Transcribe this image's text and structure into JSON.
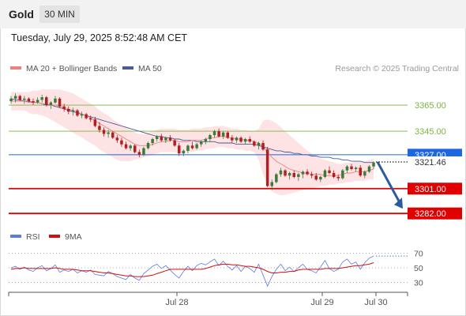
{
  "header": {
    "instrument": "Gold",
    "timeframe": "30 MIN",
    "datetime": "Tuesday, July 29, 2025 8:52:48 AM CET"
  },
  "legend": {
    "ma20_bb": "MA 20 + Bollinger Bands",
    "ma50": "MA 50",
    "credit": "Research © 2025 Trading Central",
    "rsi": "RSI",
    "rsi_ma": "9MA"
  },
  "colors": {
    "ma20": "#f08080",
    "ma50": "#4a5a9a",
    "bollinger_fill": "#fde0e0",
    "up_candle": "#3c7a3c",
    "down_candle": "#b02020",
    "resistance_green": "#7cb342",
    "pivot_blue": "#1e66e0",
    "support_red": "#e00000",
    "rsi_line": "#5b7be0",
    "rsi_ma_line": "#d01010",
    "arrow": "#2d5a9e"
  },
  "chart_data": [
    {
      "type": "candlestick",
      "panel": "price",
      "ylim": [
        3270,
        3385
      ],
      "x_ticks": [
        "Jul 28",
        "Jul 29",
        "Jul 30"
      ],
      "levels": [
        {
          "value": 3365.0,
          "label": "3365.00",
          "role": "resistance"
        },
        {
          "value": 3345.0,
          "label": "3345.00",
          "role": "resistance"
        },
        {
          "value": 3327.0,
          "label": "3327.00",
          "role": "pivot"
        },
        {
          "value": 3301.0,
          "label": "3301.00",
          "role": "support"
        },
        {
          "value": 3282.0,
          "label": "3282.00",
          "role": "support"
        }
      ],
      "last_price": {
        "value": 3321.46,
        "label": "3321.46"
      },
      "candles": [
        [
          3368,
          3372,
          3366,
          3370
        ],
        [
          3370,
          3374,
          3367,
          3372
        ],
        [
          3372,
          3373,
          3368,
          3369
        ],
        [
          3369,
          3372,
          3366,
          3370
        ],
        [
          3370,
          3371,
          3367,
          3368
        ],
        [
          3368,
          3370,
          3365,
          3367
        ],
        [
          3367,
          3371,
          3366,
          3369
        ],
        [
          3369,
          3373,
          3367,
          3371
        ],
        [
          3371,
          3372,
          3364,
          3365
        ],
        [
          3365,
          3368,
          3362,
          3367
        ],
        [
          3367,
          3372,
          3366,
          3370
        ],
        [
          3370,
          3371,
          3363,
          3364
        ],
        [
          3364,
          3366,
          3360,
          3362
        ],
        [
          3362,
          3364,
          3358,
          3360
        ],
        [
          3360,
          3363,
          3357,
          3361
        ],
        [
          3361,
          3362,
          3356,
          3357
        ],
        [
          3357,
          3360,
          3355,
          3358
        ],
        [
          3358,
          3359,
          3354,
          3355
        ],
        [
          3355,
          3357,
          3352,
          3354
        ],
        [
          3354,
          3356,
          3348,
          3349
        ],
        [
          3349,
          3352,
          3344,
          3346
        ],
        [
          3346,
          3348,
          3341,
          3343
        ],
        [
          3343,
          3346,
          3340,
          3344
        ],
        [
          3344,
          3345,
          3339,
          3340
        ],
        [
          3340,
          3342,
          3336,
          3338
        ],
        [
          3338,
          3340,
          3333,
          3335
        ],
        [
          3335,
          3337,
          3331,
          3332
        ],
        [
          3332,
          3335,
          3330,
          3334
        ],
        [
          3334,
          3335,
          3328,
          3329
        ],
        [
          3329,
          3331,
          3325,
          3327
        ],
        [
          3327,
          3333,
          3326,
          3332
        ],
        [
          3332,
          3337,
          3331,
          3336
        ],
        [
          3336,
          3340,
          3334,
          3339
        ],
        [
          3339,
          3342,
          3337,
          3341
        ],
        [
          3341,
          3343,
          3337,
          3338
        ],
        [
          3338,
          3341,
          3336,
          3340
        ],
        [
          3340,
          3342,
          3337,
          3338
        ],
        [
          3338,
          3339,
          3333,
          3334
        ],
        [
          3334,
          3336,
          3326,
          3328
        ],
        [
          3328,
          3331,
          3326,
          3330
        ],
        [
          3330,
          3335,
          3328,
          3334
        ],
        [
          3334,
          3337,
          3331,
          3332
        ],
        [
          3332,
          3336,
          3331,
          3335
        ],
        [
          3335,
          3338,
          3333,
          3337
        ],
        [
          3337,
          3340,
          3335,
          3339
        ],
        [
          3339,
          3343,
          3337,
          3342
        ],
        [
          3342,
          3346,
          3340,
          3345
        ],
        [
          3345,
          3347,
          3340,
          3341
        ],
        [
          3341,
          3345,
          3339,
          3344
        ],
        [
          3344,
          3345,
          3339,
          3340
        ],
        [
          3340,
          3342,
          3336,
          3338
        ],
        [
          3338,
          3341,
          3336,
          3340
        ],
        [
          3340,
          3341,
          3336,
          3337
        ],
        [
          3337,
          3340,
          3335,
          3339
        ],
        [
          3339,
          3341,
          3336,
          3337
        ],
        [
          3337,
          3338,
          3333,
          3334
        ],
        [
          3334,
          3337,
          3331,
          3336
        ],
        [
          3336,
          3338,
          3330,
          3331
        ],
        [
          3331,
          3333,
          3302,
          3303
        ],
        [
          3303,
          3308,
          3300,
          3306
        ],
        [
          3306,
          3313,
          3305,
          3312
        ],
        [
          3312,
          3317,
          3310,
          3315
        ],
        [
          3315,
          3316,
          3310,
          3311
        ],
        [
          3311,
          3314,
          3308,
          3313
        ],
        [
          3313,
          3315,
          3309,
          3310
        ],
        [
          3310,
          3313,
          3307,
          3312
        ],
        [
          3312,
          3315,
          3309,
          3314
        ],
        [
          3314,
          3316,
          3311,
          3312
        ],
        [
          3312,
          3314,
          3309,
          3311
        ],
        [
          3311,
          3313,
          3307,
          3308
        ],
        [
          3308,
          3311,
          3306,
          3310
        ],
        [
          3310,
          3316,
          3309,
          3315
        ],
        [
          3315,
          3318,
          3312,
          3313
        ],
        [
          3313,
          3315,
          3309,
          3310
        ],
        [
          3310,
          3312,
          3307,
          3309
        ],
        [
          3309,
          3316,
          3308,
          3315
        ],
        [
          3315,
          3319,
          3313,
          3318
        ],
        [
          3318,
          3320,
          3315,
          3316
        ],
        [
          3316,
          3318,
          3314,
          3317
        ],
        [
          3317,
          3319,
          3310,
          3311
        ],
        [
          3311,
          3315,
          3309,
          3314
        ],
        [
          3314,
          3319,
          3313,
          3318
        ],
        [
          3318,
          3322,
          3316,
          3321
        ]
      ],
      "ma20": [
        3368,
        3368,
        3368,
        3368,
        3367,
        3367,
        3367,
        3366,
        3366,
        3365,
        3365,
        3364,
        3363,
        3362,
        3361,
        3360,
        3358,
        3357,
        3355,
        3353,
        3351,
        3349,
        3347,
        3345,
        3343,
        3341,
        3339,
        3337,
        3335,
        3334,
        3334,
        3334,
        3335,
        3336,
        3337,
        3337,
        3338,
        3338,
        3337,
        3337,
        3337,
        3338,
        3338,
        3338,
        3339,
        3340,
        3340,
        3341,
        3341,
        3340,
        3340,
        3339,
        3339,
        3338,
        3338,
        3337,
        3336,
        3333,
        3329,
        3325,
        3322,
        3320,
        3318,
        3316,
        3315,
        3314,
        3313,
        3313,
        3312,
        3312,
        3312,
        3311,
        3311,
        3311,
        3311,
        3312,
        3313,
        3313,
        3314,
        3314,
        3314,
        3315,
        3316
      ],
      "bb_upper": [
        3375,
        3375,
        3375,
        3375,
        3375,
        3376,
        3376,
        3377,
        3377,
        3377,
        3377,
        3377,
        3376,
        3375,
        3374,
        3372,
        3370,
        3368,
        3366,
        3364,
        3361,
        3359,
        3357,
        3354,
        3352,
        3350,
        3348,
        3346,
        3344,
        3343,
        3343,
        3344,
        3345,
        3346,
        3347,
        3347,
        3347,
        3347,
        3346,
        3346,
        3346,
        3347,
        3347,
        3347,
        3348,
        3348,
        3349,
        3349,
        3349,
        3348,
        3347,
        3347,
        3346,
        3346,
        3345,
        3345,
        3347,
        3353,
        3354,
        3353,
        3351,
        3348,
        3345,
        3342,
        3339,
        3336,
        3333,
        3330,
        3328,
        3326,
        3324,
        3323,
        3322,
        3321,
        3320,
        3320,
        3321,
        3321,
        3322,
        3322,
        3322,
        3323,
        3324
      ],
      "bb_lower": [
        3361,
        3361,
        3361,
        3361,
        3359,
        3358,
        3358,
        3357,
        3356,
        3354,
        3352,
        3350,
        3348,
        3346,
        3344,
        3342,
        3340,
        3338,
        3336,
        3334,
        3331,
        3329,
        3327,
        3325,
        3323,
        3322,
        3322,
        3322,
        3323,
        3324,
        3325,
        3326,
        3327,
        3328,
        3329,
        3329,
        3329,
        3329,
        3328,
        3328,
        3329,
        3329,
        3330,
        3330,
        3331,
        3332,
        3332,
        3333,
        3333,
        3332,
        3332,
        3331,
        3331,
        3330,
        3330,
        3329,
        3323,
        3312,
        3304,
        3299,
        3297,
        3296,
        3296,
        3297,
        3298,
        3299,
        3300,
        3301,
        3301,
        3302,
        3303,
        3303,
        3304,
        3304,
        3305,
        3305,
        3306,
        3306,
        3307,
        3307,
        3307,
        3308,
        3308
      ],
      "ma50": [
        3370,
        3369,
        3369,
        3368,
        3368,
        3367,
        3367,
        3366,
        3365,
        3365,
        3364,
        3363,
        3362,
        3361,
        3360,
        3359,
        3358,
        3357,
        3356,
        3355,
        3354,
        3353,
        3352,
        3351,
        3350,
        3349,
        3348,
        3347,
        3346,
        3345,
        3344,
        3343,
        3342,
        3341,
        3341,
        3340,
        3340,
        3339,
        3339,
        3338,
        3338,
        3338,
        3337,
        3337,
        3337,
        3337,
        3337,
        3336,
        3336,
        3336,
        3336,
        3335,
        3335,
        3335,
        3335,
        3335,
        3334,
        3333,
        3332,
        3331,
        3330,
        3330,
        3329,
        3329,
        3328,
        3328,
        3327,
        3327,
        3326,
        3326,
        3325,
        3325,
        3325,
        3324,
        3324,
        3323,
        3323,
        3322,
        3322,
        3322,
        3321,
        3321,
        3321
      ],
      "projection": {
        "from": 3321.46,
        "to": 3282.0
      }
    },
    {
      "type": "line",
      "panel": "rsi",
      "ylim": [
        22,
        78
      ],
      "y_ticks": [
        70,
        50,
        30
      ],
      "series": [
        {
          "name": "RSI",
          "values": [
            50,
            52,
            48,
            51,
            47,
            45,
            50,
            53,
            46,
            49,
            54,
            44,
            47,
            45,
            48,
            43,
            46,
            44,
            47,
            41,
            40,
            39,
            45,
            42,
            38,
            36,
            34,
            41,
            36,
            33,
            42,
            47,
            52,
            55,
            49,
            53,
            47,
            41,
            36,
            45,
            52,
            46,
            53,
            56,
            54,
            58,
            62,
            53,
            59,
            52,
            47,
            53,
            45,
            52,
            49,
            44,
            55,
            40,
            25,
            38,
            48,
            55,
            46,
            51,
            45,
            50,
            55,
            48,
            46,
            43,
            51,
            60,
            49,
            45,
            48,
            58,
            62,
            55,
            58,
            48,
            57,
            63,
            66
          ]
        },
        {
          "name": "9MA",
          "values": [
            48,
            49,
            49,
            50,
            49,
            49,
            49,
            49,
            49,
            49,
            50,
            49,
            48,
            48,
            48,
            47,
            46,
            46,
            46,
            45,
            44,
            43,
            43,
            42,
            41,
            40,
            39,
            39,
            38,
            38,
            38,
            39,
            40,
            42,
            44,
            46,
            48,
            48,
            48,
            48,
            48,
            48,
            48,
            48,
            49,
            51,
            53,
            54,
            55,
            55,
            54,
            54,
            53,
            52,
            52,
            51,
            50,
            48,
            45,
            43,
            43,
            44,
            44,
            45,
            45,
            47,
            48,
            48,
            48,
            48,
            48,
            49,
            49,
            49,
            49,
            50,
            51,
            52,
            53,
            53,
            54,
            55,
            57
          ]
        }
      ]
    }
  ]
}
